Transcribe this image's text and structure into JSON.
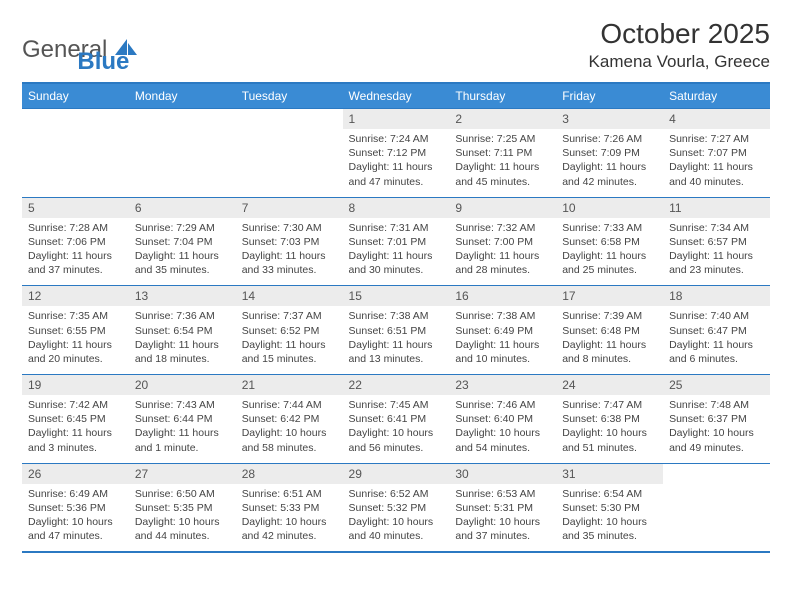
{
  "logo": {
    "text_general": "General",
    "text_blue": "Blue"
  },
  "title": "October 2025",
  "location": "Kamena Vourla, Greece",
  "colors": {
    "header_bg": "#3a8bd4",
    "header_text": "#ffffff",
    "border": "#2b79c2",
    "daynum_bg": "#ececec",
    "body_text": "#444444"
  },
  "day_headers": [
    "Sunday",
    "Monday",
    "Tuesday",
    "Wednesday",
    "Thursday",
    "Friday",
    "Saturday"
  ],
  "weeks": [
    [
      {
        "n": "",
        "lines": []
      },
      {
        "n": "",
        "lines": []
      },
      {
        "n": "",
        "lines": []
      },
      {
        "n": "1",
        "lines": [
          "Sunrise: 7:24 AM",
          "Sunset: 7:12 PM",
          "Daylight: 11 hours and 47 minutes."
        ]
      },
      {
        "n": "2",
        "lines": [
          "Sunrise: 7:25 AM",
          "Sunset: 7:11 PM",
          "Daylight: 11 hours and 45 minutes."
        ]
      },
      {
        "n": "3",
        "lines": [
          "Sunrise: 7:26 AM",
          "Sunset: 7:09 PM",
          "Daylight: 11 hours and 42 minutes."
        ]
      },
      {
        "n": "4",
        "lines": [
          "Sunrise: 7:27 AM",
          "Sunset: 7:07 PM",
          "Daylight: 11 hours and 40 minutes."
        ]
      }
    ],
    [
      {
        "n": "5",
        "lines": [
          "Sunrise: 7:28 AM",
          "Sunset: 7:06 PM",
          "Daylight: 11 hours and 37 minutes."
        ]
      },
      {
        "n": "6",
        "lines": [
          "Sunrise: 7:29 AM",
          "Sunset: 7:04 PM",
          "Daylight: 11 hours and 35 minutes."
        ]
      },
      {
        "n": "7",
        "lines": [
          "Sunrise: 7:30 AM",
          "Sunset: 7:03 PM",
          "Daylight: 11 hours and 33 minutes."
        ]
      },
      {
        "n": "8",
        "lines": [
          "Sunrise: 7:31 AM",
          "Sunset: 7:01 PM",
          "Daylight: 11 hours and 30 minutes."
        ]
      },
      {
        "n": "9",
        "lines": [
          "Sunrise: 7:32 AM",
          "Sunset: 7:00 PM",
          "Daylight: 11 hours and 28 minutes."
        ]
      },
      {
        "n": "10",
        "lines": [
          "Sunrise: 7:33 AM",
          "Sunset: 6:58 PM",
          "Daylight: 11 hours and 25 minutes."
        ]
      },
      {
        "n": "11",
        "lines": [
          "Sunrise: 7:34 AM",
          "Sunset: 6:57 PM",
          "Daylight: 11 hours and 23 minutes."
        ]
      }
    ],
    [
      {
        "n": "12",
        "lines": [
          "Sunrise: 7:35 AM",
          "Sunset: 6:55 PM",
          "Daylight: 11 hours and 20 minutes."
        ]
      },
      {
        "n": "13",
        "lines": [
          "Sunrise: 7:36 AM",
          "Sunset: 6:54 PM",
          "Daylight: 11 hours and 18 minutes."
        ]
      },
      {
        "n": "14",
        "lines": [
          "Sunrise: 7:37 AM",
          "Sunset: 6:52 PM",
          "Daylight: 11 hours and 15 minutes."
        ]
      },
      {
        "n": "15",
        "lines": [
          "Sunrise: 7:38 AM",
          "Sunset: 6:51 PM",
          "Daylight: 11 hours and 13 minutes."
        ]
      },
      {
        "n": "16",
        "lines": [
          "Sunrise: 7:38 AM",
          "Sunset: 6:49 PM",
          "Daylight: 11 hours and 10 minutes."
        ]
      },
      {
        "n": "17",
        "lines": [
          "Sunrise: 7:39 AM",
          "Sunset: 6:48 PM",
          "Daylight: 11 hours and 8 minutes."
        ]
      },
      {
        "n": "18",
        "lines": [
          "Sunrise: 7:40 AM",
          "Sunset: 6:47 PM",
          "Daylight: 11 hours and 6 minutes."
        ]
      }
    ],
    [
      {
        "n": "19",
        "lines": [
          "Sunrise: 7:42 AM",
          "Sunset: 6:45 PM",
          "Daylight: 11 hours and 3 minutes."
        ]
      },
      {
        "n": "20",
        "lines": [
          "Sunrise: 7:43 AM",
          "Sunset: 6:44 PM",
          "Daylight: 11 hours and 1 minute."
        ]
      },
      {
        "n": "21",
        "lines": [
          "Sunrise: 7:44 AM",
          "Sunset: 6:42 PM",
          "Daylight: 10 hours and 58 minutes."
        ]
      },
      {
        "n": "22",
        "lines": [
          "Sunrise: 7:45 AM",
          "Sunset: 6:41 PM",
          "Daylight: 10 hours and 56 minutes."
        ]
      },
      {
        "n": "23",
        "lines": [
          "Sunrise: 7:46 AM",
          "Sunset: 6:40 PM",
          "Daylight: 10 hours and 54 minutes."
        ]
      },
      {
        "n": "24",
        "lines": [
          "Sunrise: 7:47 AM",
          "Sunset: 6:38 PM",
          "Daylight: 10 hours and 51 minutes."
        ]
      },
      {
        "n": "25",
        "lines": [
          "Sunrise: 7:48 AM",
          "Sunset: 6:37 PM",
          "Daylight: 10 hours and 49 minutes."
        ]
      }
    ],
    [
      {
        "n": "26",
        "lines": [
          "Sunrise: 6:49 AM",
          "Sunset: 5:36 PM",
          "Daylight: 10 hours and 47 minutes."
        ]
      },
      {
        "n": "27",
        "lines": [
          "Sunrise: 6:50 AM",
          "Sunset: 5:35 PM",
          "Daylight: 10 hours and 44 minutes."
        ]
      },
      {
        "n": "28",
        "lines": [
          "Sunrise: 6:51 AM",
          "Sunset: 5:33 PM",
          "Daylight: 10 hours and 42 minutes."
        ]
      },
      {
        "n": "29",
        "lines": [
          "Sunrise: 6:52 AM",
          "Sunset: 5:32 PM",
          "Daylight: 10 hours and 40 minutes."
        ]
      },
      {
        "n": "30",
        "lines": [
          "Sunrise: 6:53 AM",
          "Sunset: 5:31 PM",
          "Daylight: 10 hours and 37 minutes."
        ]
      },
      {
        "n": "31",
        "lines": [
          "Sunrise: 6:54 AM",
          "Sunset: 5:30 PM",
          "Daylight: 10 hours and 35 minutes."
        ]
      },
      {
        "n": "",
        "lines": []
      }
    ]
  ]
}
